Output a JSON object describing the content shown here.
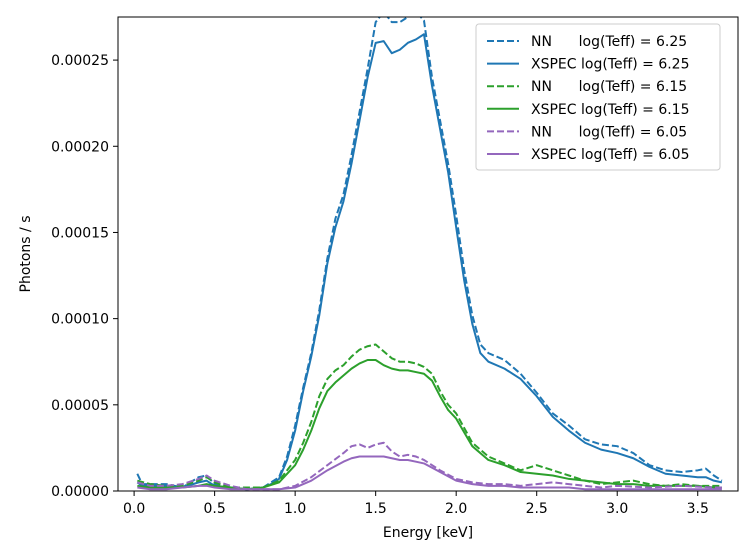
{
  "chart_data": {
    "type": "line",
    "title": "",
    "xlabel": "Energy [keV]",
    "ylabel": "Photons / s",
    "xlim": [
      -0.1,
      3.75
    ],
    "ylim": [
      0,
      0.000275
    ],
    "xticks": [
      0.0,
      0.5,
      1.0,
      1.5,
      2.0,
      2.5,
      3.0,
      3.5
    ],
    "xtick_labels": [
      "0.0",
      "0.5",
      "1.0",
      "1.5",
      "2.0",
      "2.5",
      "3.0",
      "3.5"
    ],
    "yticks": [
      0,
      5e-05,
      0.0001,
      0.00015,
      0.0002,
      0.00025
    ],
    "ytick_labels": [
      "0.00000",
      "0.00005",
      "0.00010",
      "0.00015",
      "0.00020",
      "0.00025"
    ],
    "grid": false,
    "legend_position": "top-right",
    "series": [
      {
        "name": "NN      log(Teff) = 6.25",
        "color": "#1f77b4",
        "style": "dashed",
        "x": [
          0.02,
          0.05,
          0.1,
          0.2,
          0.3,
          0.4,
          0.45,
          0.5,
          0.6,
          0.7,
          0.8,
          0.85,
          0.9,
          0.95,
          1.0,
          1.05,
          1.1,
          1.15,
          1.2,
          1.25,
          1.3,
          1.35,
          1.4,
          1.45,
          1.5,
          1.55,
          1.6,
          1.65,
          1.7,
          1.75,
          1.8,
          1.85,
          1.9,
          1.95,
          2.0,
          2.05,
          2.1,
          2.15,
          2.2,
          2.3,
          2.4,
          2.5,
          2.6,
          2.7,
          2.8,
          2.9,
          3.0,
          3.1,
          3.2,
          3.3,
          3.4,
          3.5,
          3.55,
          3.6,
          3.65
        ],
        "y": [
          1e-05,
          4e-06,
          4e-06,
          4e-06,
          2e-06,
          8e-06,
          9e-06,
          4e-06,
          2e-06,
          1e-06,
          2e-06,
          5e-06,
          8e-06,
          2e-05,
          3.8e-05,
          6e-05,
          8e-05,
          0.000105,
          0.000135,
          0.000158,
          0.000172,
          0.000195,
          0.00022,
          0.000245,
          0.000272,
          0.000278,
          0.000272,
          0.000272,
          0.000275,
          0.000278,
          0.000273,
          0.00024,
          0.000215,
          0.00019,
          0.00016,
          0.000128,
          0.000102,
          8.5e-05,
          8e-05,
          7.6e-05,
          6.8e-05,
          5.7e-05,
          4.5e-05,
          3.8e-05,
          3e-05,
          2.7e-05,
          2.6e-05,
          2.2e-05,
          1.5e-05,
          1.2e-05,
          1.1e-05,
          1.2e-05,
          1.3e-05,
          9e-06,
          6e-06
        ]
      },
      {
        "name": "XSPEC log(Teff) = 6.25",
        "color": "#1f77b4",
        "style": "solid",
        "x": [
          0.02,
          0.05,
          0.1,
          0.2,
          0.3,
          0.4,
          0.45,
          0.5,
          0.6,
          0.7,
          0.8,
          0.85,
          0.9,
          0.95,
          1.0,
          1.05,
          1.1,
          1.15,
          1.2,
          1.25,
          1.3,
          1.35,
          1.4,
          1.45,
          1.5,
          1.55,
          1.6,
          1.65,
          1.7,
          1.75,
          1.8,
          1.85,
          1.9,
          1.95,
          2.0,
          2.05,
          2.1,
          2.15,
          2.2,
          2.3,
          2.4,
          2.5,
          2.6,
          2.7,
          2.8,
          2.9,
          3.0,
          3.1,
          3.2,
          3.3,
          3.4,
          3.5,
          3.55,
          3.6,
          3.65
        ],
        "y": [
          5e-06,
          3e-06,
          3e-06,
          3e-06,
          2e-06,
          5e-06,
          6e-06,
          3e-06,
          2e-06,
          1e-06,
          2e-06,
          4e-06,
          7e-06,
          1.8e-05,
          3.5e-05,
          5.8e-05,
          7.8e-05,
          0.000102,
          0.000132,
          0.000153,
          0.000168,
          0.00019,
          0.000215,
          0.00024,
          0.00026,
          0.000261,
          0.000254,
          0.000256,
          0.00026,
          0.000262,
          0.000265,
          0.000235,
          0.00021,
          0.000185,
          0.000153,
          0.000122,
          9.7e-05,
          8e-05,
          7.5e-05,
          7.1e-05,
          6.5e-05,
          5.5e-05,
          4.3e-05,
          3.5e-05,
          2.8e-05,
          2.4e-05,
          2.2e-05,
          1.9e-05,
          1.4e-05,
          1e-05,
          9e-06,
          8e-06,
          8e-06,
          6e-06,
          5e-06
        ]
      },
      {
        "name": "NN      log(Teff) = 6.15",
        "color": "#2ca02c",
        "style": "dashed",
        "x": [
          0.02,
          0.1,
          0.2,
          0.3,
          0.4,
          0.45,
          0.5,
          0.6,
          0.7,
          0.8,
          0.9,
          1.0,
          1.05,
          1.1,
          1.15,
          1.2,
          1.25,
          1.3,
          1.35,
          1.4,
          1.45,
          1.5,
          1.55,
          1.6,
          1.65,
          1.7,
          1.75,
          1.8,
          1.85,
          1.9,
          1.95,
          2.0,
          2.1,
          2.2,
          2.3,
          2.4,
          2.5,
          2.6,
          2.7,
          2.8,
          2.9,
          3.0,
          3.1,
          3.2,
          3.3,
          3.4,
          3.5,
          3.6,
          3.65
        ],
        "y": [
          6e-06,
          4e-06,
          3e-06,
          3e-06,
          6e-06,
          8e-06,
          5e-06,
          2e-06,
          2e-06,
          2e-06,
          6e-06,
          1.8e-05,
          2.8e-05,
          4e-05,
          5.5e-05,
          6.5e-05,
          7e-05,
          7.3e-05,
          7.8e-05,
          8.2e-05,
          8.4e-05,
          8.5e-05,
          8.1e-05,
          7.7e-05,
          7.5e-05,
          7.5e-05,
          7.4e-05,
          7.2e-05,
          6.8e-05,
          5.8e-05,
          5e-05,
          4.5e-05,
          2.8e-05,
          2e-05,
          1.6e-05,
          1.2e-05,
          1.5e-05,
          1.2e-05,
          9e-06,
          6e-06,
          4e-06,
          5e-06,
          6e-06,
          4e-06,
          3e-06,
          4e-06,
          3e-06,
          3e-06,
          3e-06
        ]
      },
      {
        "name": "XSPEC log(Teff) = 6.15",
        "color": "#2ca02c",
        "style": "solid",
        "x": [
          0.02,
          0.1,
          0.2,
          0.3,
          0.4,
          0.45,
          0.5,
          0.6,
          0.7,
          0.8,
          0.9,
          1.0,
          1.05,
          1.1,
          1.15,
          1.2,
          1.25,
          1.3,
          1.35,
          1.4,
          1.45,
          1.5,
          1.55,
          1.6,
          1.65,
          1.7,
          1.75,
          1.8,
          1.85,
          1.9,
          1.95,
          2.0,
          2.1,
          2.2,
          2.3,
          2.4,
          2.5,
          2.6,
          2.7,
          2.8,
          2.9,
          3.0,
          3.1,
          3.2,
          3.3,
          3.4,
          3.5,
          3.6,
          3.65
        ],
        "y": [
          3e-06,
          2e-06,
          2e-06,
          2e-06,
          3e-06,
          4e-06,
          3e-06,
          2e-06,
          1e-06,
          2e-06,
          5e-06,
          1.5e-05,
          2.4e-05,
          3.5e-05,
          4.8e-05,
          5.8e-05,
          6.3e-05,
          6.7e-05,
          7.1e-05,
          7.4e-05,
          7.6e-05,
          7.6e-05,
          7.3e-05,
          7.1e-05,
          7e-05,
          7e-05,
          6.9e-05,
          6.8e-05,
          6.4e-05,
          5.5e-05,
          4.7e-05,
          4.2e-05,
          2.6e-05,
          1.8e-05,
          1.5e-05,
          1.1e-05,
          1e-05,
          9e-06,
          7e-06,
          6e-06,
          5e-06,
          4e-06,
          4e-06,
          3e-06,
          3e-06,
          3e-06,
          3e-06,
          2e-06,
          2e-06
        ]
      },
      {
        "name": "NN      log(Teff) = 6.05",
        "color": "#9467bd",
        "style": "dashed",
        "x": [
          0.02,
          0.1,
          0.2,
          0.3,
          0.4,
          0.45,
          0.5,
          0.6,
          0.7,
          0.8,
          0.9,
          1.0,
          1.1,
          1.2,
          1.3,
          1.35,
          1.4,
          1.45,
          1.5,
          1.55,
          1.6,
          1.65,
          1.7,
          1.75,
          1.8,
          1.9,
          2.0,
          2.1,
          2.2,
          2.3,
          2.4,
          2.5,
          2.6,
          2.7,
          2.8,
          2.9,
          3.0,
          3.2,
          3.4,
          3.6,
          3.65
        ],
        "y": [
          5e-06,
          3e-06,
          3e-06,
          4e-06,
          7e-06,
          9e-06,
          6e-06,
          3e-06,
          1e-06,
          1e-06,
          1e-06,
          3e-06,
          8e-06,
          1.5e-05,
          2.2e-05,
          2.6e-05,
          2.7e-05,
          2.5e-05,
          2.7e-05,
          2.8e-05,
          2.3e-05,
          2e-05,
          2.1e-05,
          2e-05,
          1.8e-05,
          1.2e-05,
          7e-06,
          5e-06,
          4e-06,
          4e-06,
          3e-06,
          4e-06,
          5e-06,
          4e-06,
          3e-06,
          2e-06,
          3e-06,
          2e-06,
          3e-06,
          2e-06,
          2e-06
        ]
      },
      {
        "name": "XSPEC log(Teff) = 6.05",
        "color": "#9467bd",
        "style": "solid",
        "x": [
          0.02,
          0.1,
          0.2,
          0.3,
          0.4,
          0.45,
          0.5,
          0.6,
          0.7,
          0.8,
          0.9,
          1.0,
          1.1,
          1.2,
          1.3,
          1.35,
          1.4,
          1.45,
          1.5,
          1.55,
          1.6,
          1.65,
          1.7,
          1.75,
          1.8,
          1.9,
          2.0,
          2.1,
          2.2,
          2.3,
          2.4,
          2.5,
          2.6,
          2.7,
          2.8,
          2.9,
          3.0,
          3.2,
          3.4,
          3.6,
          3.65
        ],
        "y": [
          2e-06,
          1e-06,
          1e-06,
          2e-06,
          3e-06,
          3e-06,
          2e-06,
          1e-06,
          1e-06,
          1e-06,
          1e-06,
          2e-06,
          6e-06,
          1.2e-05,
          1.7e-05,
          1.9e-05,
          2e-05,
          2e-05,
          2e-05,
          2e-05,
          1.9e-05,
          1.8e-05,
          1.8e-05,
          1.7e-05,
          1.6e-05,
          1.1e-05,
          6e-06,
          4e-06,
          3e-06,
          3e-06,
          2e-06,
          2e-06,
          2e-06,
          2e-06,
          1e-06,
          1e-06,
          1e-06,
          1e-06,
          1e-06,
          1e-06,
          1e-06
        ]
      }
    ]
  }
}
